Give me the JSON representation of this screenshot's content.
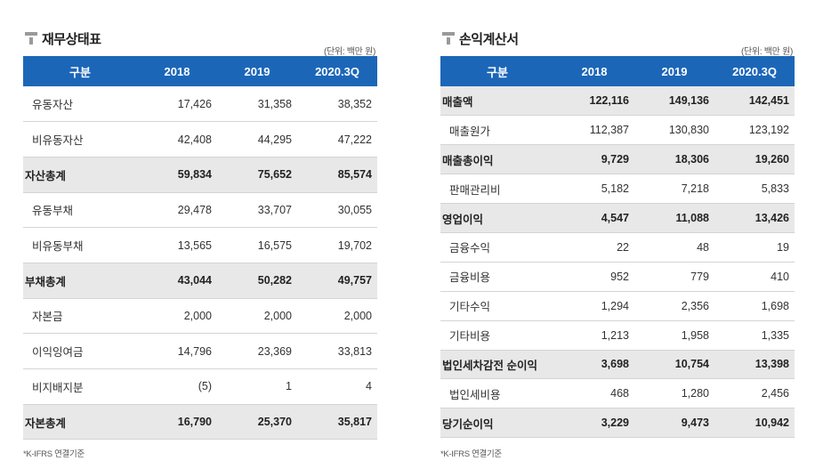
{
  "left": {
    "title": "재무상태표",
    "unit": "(단위: 백만 원)",
    "headers": [
      "구분",
      "2018",
      "2019",
      "2020.3Q"
    ],
    "rows": [
      {
        "label": "유동자산",
        "v2018": "17,426",
        "v2019": "31,358",
        "v2020": "38,352",
        "total": false
      },
      {
        "label": "비유동자산",
        "v2018": "42,408",
        "v2019": "44,295",
        "v2020": "47,222",
        "total": false
      },
      {
        "label": "자산총계",
        "v2018": "59,834",
        "v2019": "75,652",
        "v2020": "85,574",
        "total": true
      },
      {
        "label": "유동부채",
        "v2018": "29,478",
        "v2019": "33,707",
        "v2020": "30,055",
        "total": false
      },
      {
        "label": "비유동부채",
        "v2018": "13,565",
        "v2019": "16,575",
        "v2020": "19,702",
        "total": false
      },
      {
        "label": "부채총계",
        "v2018": "43,044",
        "v2019": "50,282",
        "v2020": "49,757",
        "total": true
      },
      {
        "label": "자본금",
        "v2018": "2,000",
        "v2019": "2,000",
        "v2020": "2,000",
        "total": false
      },
      {
        "label": "이익잉여금",
        "v2018": "14,796",
        "v2019": "23,369",
        "v2020": "33,813",
        "total": false
      },
      {
        "label": "비지배지분",
        "v2018": "(5)",
        "v2019": "1",
        "v2020": "4",
        "total": false
      },
      {
        "label": "자본총계",
        "v2018": "16,790",
        "v2019": "25,370",
        "v2020": "35,817",
        "total": true
      }
    ],
    "footnote": "*K-IFRS 연결기준"
  },
  "right": {
    "title": "손익계산서",
    "unit": "(단위: 백만 원)",
    "headers": [
      "구분",
      "2018",
      "2019",
      "2020.3Q"
    ],
    "rows": [
      {
        "label": "매출액",
        "v2018": "122,116",
        "v2019": "149,136",
        "v2020": "142,451",
        "total": true
      },
      {
        "label": "매출원가",
        "v2018": "112,387",
        "v2019": "130,830",
        "v2020": "123,192",
        "total": false
      },
      {
        "label": "매출총이익",
        "v2018": "9,729",
        "v2019": "18,306",
        "v2020": "19,260",
        "total": true
      },
      {
        "label": "판매관리비",
        "v2018": "5,182",
        "v2019": "7,218",
        "v2020": "5,833",
        "total": false
      },
      {
        "label": "영업이익",
        "v2018": "4,547",
        "v2019": "11,088",
        "v2020": "13,426",
        "total": true
      },
      {
        "label": "금융수익",
        "v2018": "22",
        "v2019": "48",
        "v2020": "19",
        "total": false
      },
      {
        "label": "금융비용",
        "v2018": "952",
        "v2019": "779",
        "v2020": "410",
        "total": false
      },
      {
        "label": "기타수익",
        "v2018": "1,294",
        "v2019": "2,356",
        "v2020": "1,698",
        "total": false
      },
      {
        "label": "기타비용",
        "v2018": "1,213",
        "v2019": "1,958",
        "v2020": "1,335",
        "total": false
      },
      {
        "label": "법인세차감전 순이익",
        "v2018": "3,698",
        "v2019": "10,754",
        "v2020": "13,398",
        "total": true
      },
      {
        "label": "법인세비용",
        "v2018": "468",
        "v2019": "1,280",
        "v2020": "2,456",
        "total": false
      },
      {
        "label": "당기순이익",
        "v2018": "3,229",
        "v2019": "9,473",
        "v2020": "10,942",
        "total": true
      }
    ],
    "footnote": "*K-IFRS 연결기준"
  }
}
